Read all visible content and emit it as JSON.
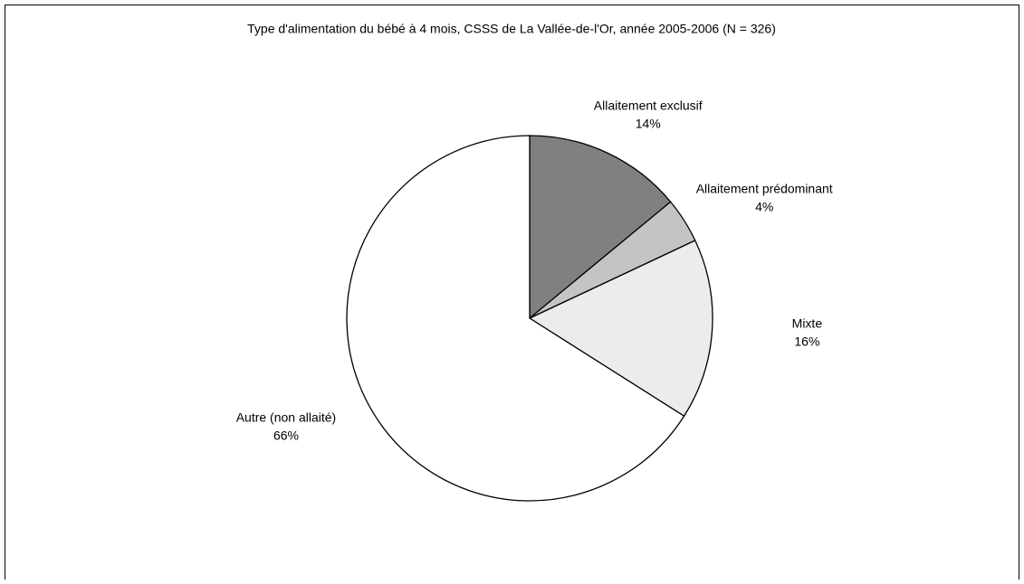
{
  "chart_data": {
    "type": "pie",
    "title": "Type d'alimentation du bébé à 4 mois, CSSS de La Vallée-de-l'Or, année 2005-2006  (N = 326)",
    "categories": [
      "Allaitement exclusif",
      "Allaitement prédominant",
      "Mixte",
      "Autre (non allaité)"
    ],
    "values": [
      14,
      4,
      16,
      66
    ],
    "value_labels": [
      "14%",
      "4%",
      "16%",
      "66%"
    ],
    "colors": [
      "#808080",
      "#c4c4c4",
      "#ececec",
      "#ffffff"
    ]
  }
}
